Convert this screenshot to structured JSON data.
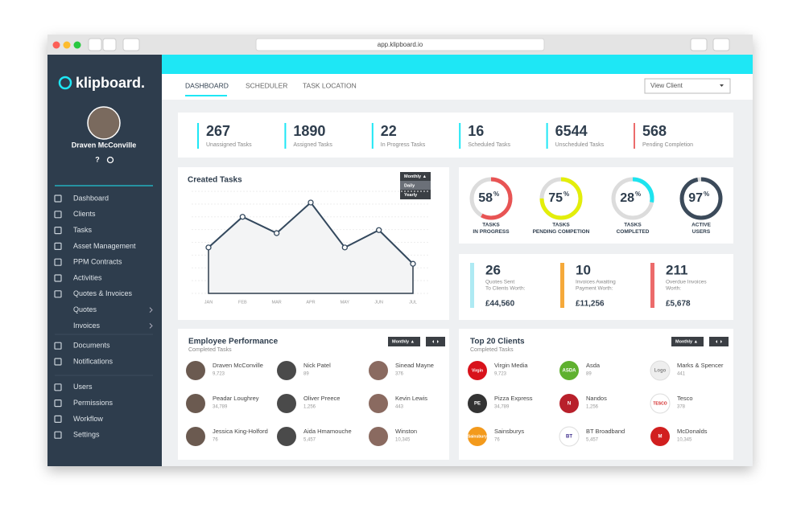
{
  "browser": {
    "url": "app.klipboard.io"
  },
  "sidebar": {
    "logo": "klipboard.",
    "user": "Draven McConville",
    "help": "?",
    "menu": [
      [
        "Dashboard",
        "Clients",
        "Tasks",
        "Asset Management",
        "PPM Contracts",
        "Activities",
        "Quotes & Invoices",
        "Quotes",
        "Invoices"
      ],
      [
        "Documents",
        "Notifications"
      ],
      [
        "Users",
        "Permissions",
        "Workflow",
        "Settings"
      ]
    ]
  },
  "nav": {
    "tabs": [
      "DASHBOARD",
      "SCHEDULER",
      "TASK LOCATION"
    ],
    "view_client": "View Client"
  },
  "stats": [
    {
      "value": 267,
      "label": "Unassigned Tasks"
    },
    {
      "value": 1890,
      "label": "Assigned Tasks"
    },
    {
      "value": 22,
      "label": "In Progress Tasks"
    },
    {
      "value": 16,
      "label": "Scheduled Tasks"
    },
    {
      "value": 6544,
      "label": "Unscheduled Tasks"
    },
    {
      "value": 568,
      "label": "Pending Completion"
    }
  ],
  "created_tasks": {
    "title": "Created Tasks",
    "dropdown": [
      "Monthly ▲",
      "Daily",
      "Yearly"
    ],
    "chart": {
      "type": "line",
      "categories": [
        "JAN",
        "FEB",
        "MAR",
        "APR",
        "MAY",
        "JUN",
        "JUL"
      ],
      "values": [
        45,
        75,
        59,
        89,
        45,
        62,
        29
      ],
      "ylim": [
        0,
        100
      ],
      "color": "#34495e"
    }
  },
  "gauges": {
    "symbol": "%",
    "items": [
      {
        "value": 58,
        "label": [
          "TASKS",
          "IN PROGRESS"
        ],
        "color": "#e85454"
      },
      {
        "value": 75,
        "label": [
          "TASKS",
          "PENDING COMPETION"
        ],
        "color": "#e3ee0a"
      },
      {
        "value": 28,
        "label": [
          "TASKS",
          "COMPLETED"
        ],
        "color": "#1de4ef"
      },
      {
        "value": 97,
        "label": [
          "ACTIVE",
          "USERS"
        ],
        "color": "#3b4a5a"
      }
    ]
  },
  "quotes": [
    {
      "value": 26,
      "lines": [
        "Quotes Sent",
        "To Clients Worth:"
      ],
      "amount": "£44,560",
      "color": "#aeeaf3"
    },
    {
      "value": 10,
      "lines": [
        "Invoices Awaiting",
        "Payment Worth:"
      ],
      "amount": "£11,256",
      "color": "#f5a93a"
    },
    {
      "value": 211,
      "lines": [
        "Overdue Invoices",
        "Worth:"
      ],
      "amount": "£5,678",
      "color": "#ec6b6b"
    }
  ],
  "employees": {
    "title": "Employee Performance",
    "subtitle": "Completed Tasks",
    "button": "Monthly ▲",
    "people": [
      {
        "name": "Draven McConville",
        "count": "9,723"
      },
      {
        "name": "Nick Patel",
        "count": "89"
      },
      {
        "name": "Sinead Mayne",
        "count": "376"
      },
      {
        "name": "Peadar Loughrey",
        "count": "34,789"
      },
      {
        "name": "Oliver Preece",
        "count": "1,256"
      },
      {
        "name": "Kevin Lewis",
        "count": "443"
      },
      {
        "name": "Jessica King-Holford",
        "count": "76"
      },
      {
        "name": "Aida Hmamouche",
        "count": "5,457"
      },
      {
        "name": "Winston",
        "count": "10,345"
      }
    ]
  },
  "clients": {
    "title": "Top 20 Clients",
    "subtitle": "Completed Tasks",
    "button": "Monthly ▲",
    "people": [
      {
        "name": "Virgin Media",
        "count": "9,723",
        "logo": "Virgin",
        "color": "#d8121b"
      },
      {
        "name": "Asda",
        "count": "89",
        "logo": "ASDA",
        "color": "#5fb12f"
      },
      {
        "name": "Marks & Spencer",
        "count": "441",
        "logo": "Logo",
        "color": "#eeeeee"
      },
      {
        "name": "Pizza Express",
        "count": "34,789",
        "logo": "PE",
        "color": "#333333"
      },
      {
        "name": "Nandos",
        "count": "1,256",
        "logo": "N",
        "color": "#b8202b"
      },
      {
        "name": "Tesco",
        "count": "378",
        "logo": "TESCO",
        "color": "#ffffff"
      },
      {
        "name": "Sainsburys",
        "count": "76",
        "logo": "Sainsbury",
        "color": "#f39a1c"
      },
      {
        "name": "BT Broadband",
        "count": "5,457",
        "logo": "BT",
        "color": "#ffffff"
      },
      {
        "name": "McDonalds",
        "count": "10,345",
        "logo": "M",
        "color": "#d11f1f"
      }
    ]
  }
}
